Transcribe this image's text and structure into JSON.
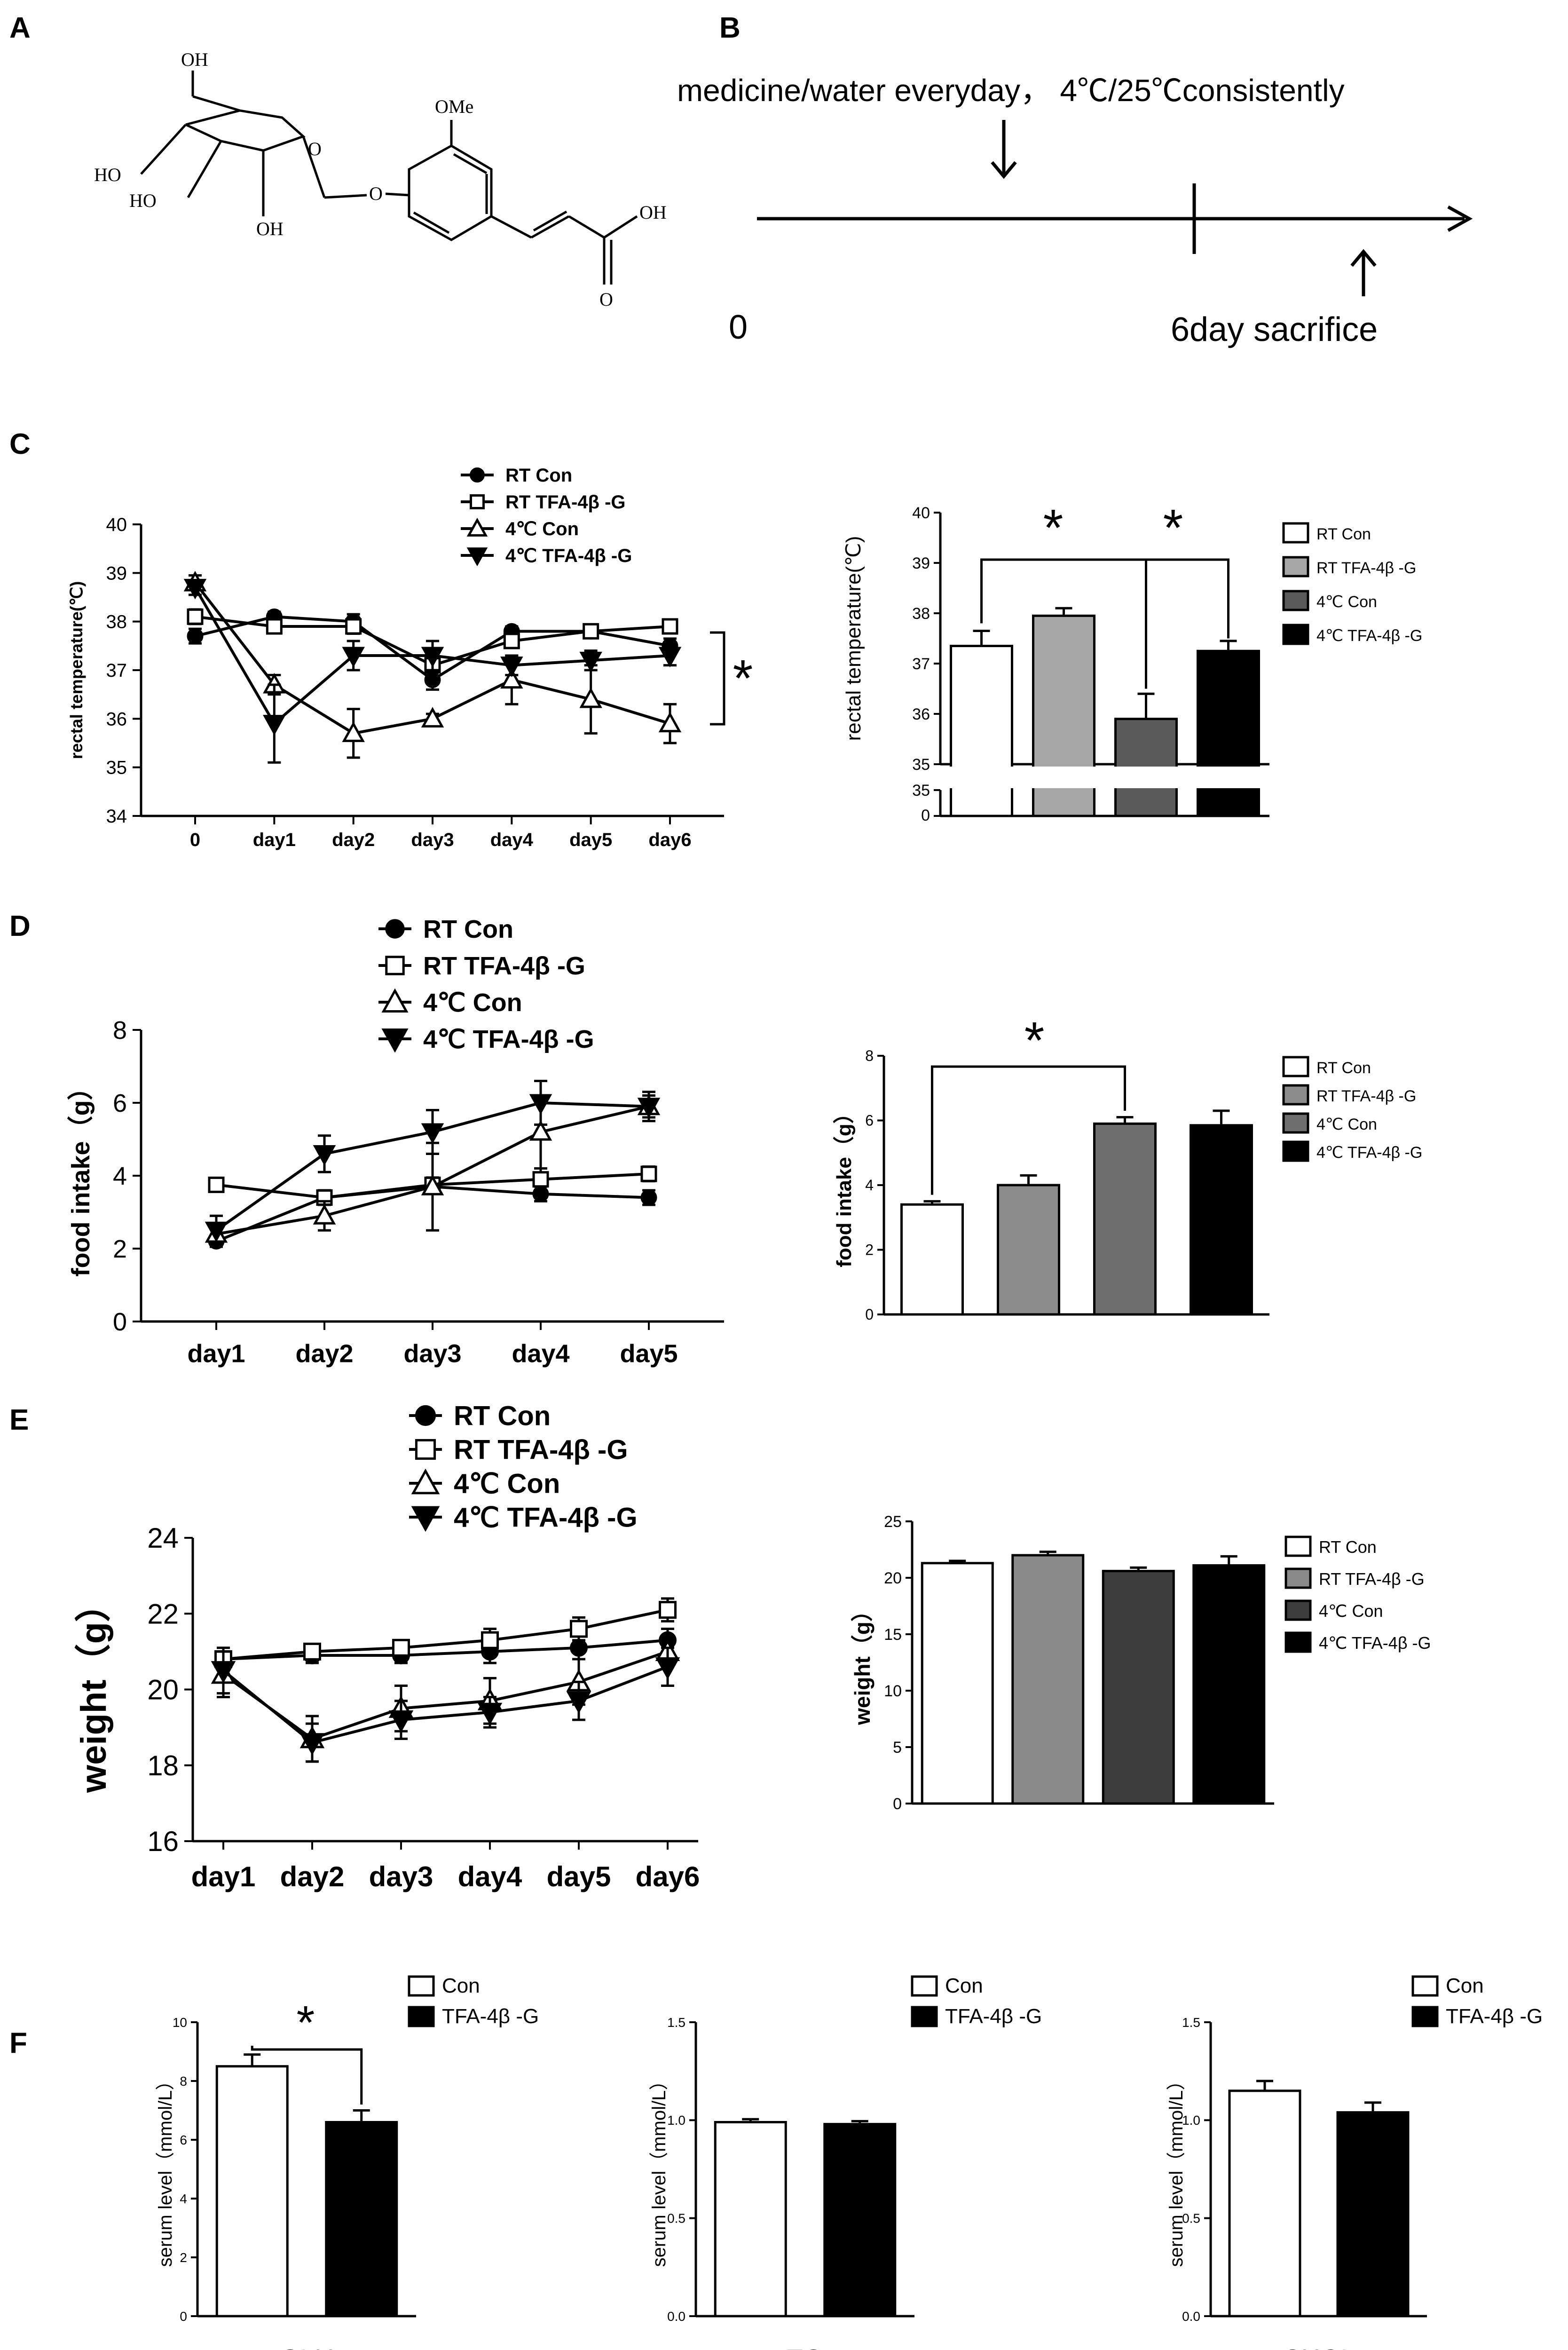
{
  "panels": {
    "A": {
      "letter": "A",
      "labels": {
        "oh1": "OH",
        "ho1": "HO",
        "ho2": "HO",
        "oh2": "OH",
        "o_ring": "O",
        "o_link": "O",
        "ome": "OMe",
        "cooh": "OH",
        "o_keto": "O"
      }
    },
    "B": {
      "letter": "B",
      "title": "medicine/water everyday， 4℃/25℃consistently",
      "start": "0",
      "end_label": "6day sacrifice"
    },
    "C": {
      "letter": "C"
    },
    "D": {
      "letter": "D"
    },
    "E": {
      "letter": "E"
    },
    "F": {
      "letter": "F"
    }
  },
  "chart_data": [
    {
      "id": "C_line",
      "type": "line",
      "ylabel": "rectal temperature(℃)",
      "categories": [
        "0",
        "day1",
        "day2",
        "day3",
        "day4",
        "day5",
        "day6"
      ],
      "ylim": [
        34,
        40
      ],
      "yticks": [
        34,
        35,
        36,
        37,
        38,
        39,
        40
      ],
      "legend": [
        {
          "name": "RT Con",
          "marker": "circle"
        },
        {
          "name": "RT TFA-4β -G",
          "marker": "square"
        },
        {
          "name": "4℃  Con",
          "marker": "triangle-up"
        },
        {
          "name": "4℃  TFA-4β -G",
          "marker": "triangle-down"
        }
      ],
      "series": [
        {
          "name": "RT Con",
          "marker": "circle",
          "values": [
            37.7,
            38.1,
            38.0,
            36.8,
            37.8,
            37.8,
            37.5
          ],
          "errors": [
            0.15,
            0.1,
            0.15,
            0.2,
            0.1,
            0.1,
            0.15
          ]
        },
        {
          "name": "RT TFA-4β -G",
          "marker": "square",
          "values": [
            38.1,
            37.9,
            37.9,
            37.1,
            37.6,
            37.8,
            37.9
          ],
          "errors": [
            0.15,
            0.1,
            0.15,
            0.15,
            0.1,
            0.1,
            0.1
          ]
        },
        {
          "name": "4℃  Con",
          "marker": "triangle-up",
          "values": [
            38.8,
            36.7,
            35.7,
            36.0,
            36.8,
            36.4,
            35.9
          ],
          "errors": [
            0.15,
            0.2,
            0.5,
            0.1,
            0.5,
            0.7,
            0.4
          ]
        },
        {
          "name": "4℃  TFA-4β -G",
          "marker": "triangle-down",
          "values": [
            38.7,
            35.9,
            37.3,
            37.3,
            37.1,
            37.2,
            37.3
          ],
          "errors": [
            0.15,
            0.8,
            0.3,
            0.3,
            0.2,
            0.2,
            0.2
          ]
        }
      ],
      "annotation": "*"
    },
    {
      "id": "C_bar",
      "type": "bar",
      "ylabel": "rectal temperature(℃)",
      "ylim": [
        35,
        40
      ],
      "yticks": [
        35,
        36,
        37,
        38,
        39,
        40
      ],
      "axis_break": true,
      "break_labels": [
        "35",
        "0"
      ],
      "categories": [
        "RT Con",
        "RT TFA-4β -G",
        "4℃ Con",
        "4℃ TFA-4β -G"
      ],
      "values": [
        37.35,
        37.95,
        35.9,
        37.25
      ],
      "errors": [
        0.3,
        0.15,
        0.5,
        0.2
      ],
      "colors": [
        "#ffffff",
        "#a6a6a6",
        "#5a5a5a",
        "#000000"
      ],
      "annotations": [
        "*",
        "*"
      ]
    },
    {
      "id": "D_line",
      "type": "line",
      "ylabel": "food intake（g）",
      "categories": [
        "day1",
        "day2",
        "day3",
        "day4",
        "day5"
      ],
      "ylim": [
        0,
        8
      ],
      "yticks": [
        0,
        2,
        4,
        6,
        8
      ],
      "legend": [
        {
          "name": "RT Con",
          "marker": "circle"
        },
        {
          "name": "RT TFA-4β -G",
          "marker": "square"
        },
        {
          "name": "4℃ Con",
          "marker": "triangle-up"
        },
        {
          "name": "4℃  TFA-4β -G",
          "marker": "triangle-down"
        }
      ],
      "series": [
        {
          "name": "RT Con",
          "marker": "circle",
          "values": [
            2.2,
            3.4,
            3.7,
            3.5,
            3.4
          ],
          "errors": [
            0.15,
            0.2,
            0.2,
            0.2,
            0.2
          ]
        },
        {
          "name": "RT TFA-4β -G",
          "marker": "square",
          "values": [
            3.75,
            3.4,
            3.75,
            3.9,
            4.05
          ],
          "errors": [
            0.1,
            0.2,
            0.2,
            0.3,
            0.2
          ]
        },
        {
          "name": "4℃ Con",
          "marker": "triangle-up",
          "values": [
            2.4,
            2.9,
            3.7,
            5.2,
            5.9
          ],
          "errors": [
            0.3,
            0.4,
            1.2,
            1.0,
            0.3
          ]
        },
        {
          "name": "4℃  TFA-4β -G",
          "marker": "triangle-down",
          "values": [
            2.5,
            4.6,
            5.2,
            6.0,
            5.9
          ],
          "errors": [
            0.4,
            0.5,
            0.6,
            0.6,
            0.4
          ]
        }
      ]
    },
    {
      "id": "D_bar",
      "type": "bar",
      "ylabel": "food intake（g）",
      "ylim": [
        0,
        8
      ],
      "yticks": [
        0,
        2,
        4,
        6,
        8
      ],
      "categories": [
        "RT Con",
        "RT TFA-4β -G",
        "4℃ Con",
        "4℃ TFA-4β -G"
      ],
      "values": [
        3.4,
        4.0,
        5.9,
        5.85
      ],
      "errors": [
        0.1,
        0.3,
        0.2,
        0.45
      ],
      "colors": [
        "#ffffff",
        "#8c8c8c",
        "#6e6e6e",
        "#000000"
      ],
      "annotations": [
        "*"
      ]
    },
    {
      "id": "E_line",
      "type": "line",
      "ylabel": "weight（g）",
      "categories": [
        "day1",
        "day2",
        "day3",
        "day4",
        "day5",
        "day6"
      ],
      "ylim": [
        16,
        24
      ],
      "yticks": [
        16,
        18,
        20,
        22,
        24
      ],
      "legend": [
        {
          "name": "RT Con",
          "marker": "circle"
        },
        {
          "name": "RT TFA-4β -G",
          "marker": "square"
        },
        {
          "name": "4℃ Con",
          "marker": "triangle-up"
        },
        {
          "name": "4℃  TFA-4β -G",
          "marker": "triangle-down"
        }
      ],
      "series": [
        {
          "name": "RT Con",
          "marker": "circle",
          "values": [
            20.8,
            20.9,
            20.9,
            21.0,
            21.1,
            21.3
          ],
          "errors": [
            0.2,
            0.2,
            0.2,
            0.3,
            0.3,
            0.3
          ]
        },
        {
          "name": "RT TFA-4β -G",
          "marker": "square",
          "values": [
            20.8,
            21.0,
            21.1,
            21.3,
            21.6,
            22.1
          ],
          "errors": [
            0.2,
            0.2,
            0.2,
            0.3,
            0.3,
            0.3
          ]
        },
        {
          "name": "4℃ Con",
          "marker": "triangle-up",
          "values": [
            20.4,
            18.7,
            19.5,
            19.7,
            20.2,
            21.0
          ],
          "errors": [
            0.6,
            0.6,
            0.6,
            0.6,
            0.6,
            0.4
          ]
        },
        {
          "name": "4℃  TFA-4β -G",
          "marker": "triangle-down",
          "values": [
            20.5,
            18.6,
            19.2,
            19.4,
            19.7,
            20.6
          ],
          "errors": [
            0.6,
            0.5,
            0.5,
            0.4,
            0.5,
            0.5
          ]
        }
      ]
    },
    {
      "id": "E_bar",
      "type": "bar",
      "ylabel": "weight（g）",
      "ylim": [
        0,
        25
      ],
      "yticks": [
        0,
        5,
        10,
        15,
        20,
        25
      ],
      "categories": [
        "RT Con",
        "RT TFA-4β -G",
        "4℃ Con",
        "4℃ TFA-4β -G"
      ],
      "values": [
        21.3,
        22.0,
        20.6,
        21.1
      ],
      "errors": [
        0.2,
        0.3,
        0.3,
        0.8
      ],
      "colors": [
        "#ffffff",
        "#8a8a8a",
        "#3c3c3c",
        "#000000"
      ]
    },
    {
      "id": "F_glu",
      "type": "bar",
      "ylabel": "serum level（mmol/L）",
      "xlabel": "GLU",
      "ylim": [
        0,
        10
      ],
      "yticks": [
        0,
        2,
        4,
        6,
        8,
        10
      ],
      "categories": [
        "Con",
        "TFA-4β -G"
      ],
      "values": [
        8.5,
        6.6
      ],
      "errors": [
        0.4,
        0.4
      ],
      "colors": [
        "#ffffff",
        "#000000"
      ],
      "annotations": [
        "*"
      ]
    },
    {
      "id": "F_tg",
      "type": "bar",
      "ylabel": "serum level（mmol/L）",
      "xlabel": "TG",
      "ylim": [
        0,
        1.5
      ],
      "yticks": [
        0.0,
        0.5,
        1.0,
        1.5
      ],
      "categories": [
        "Con",
        "TFA-4β -G"
      ],
      "values": [
        0.99,
        0.98
      ],
      "errors": [
        0.015,
        0.015
      ],
      "colors": [
        "#ffffff",
        "#000000"
      ]
    },
    {
      "id": "F_chol",
      "type": "bar",
      "ylabel": "serum level（mmol/L）",
      "xlabel": "CHOL",
      "ylim": [
        0,
        1.5
      ],
      "yticks": [
        0.0,
        0.5,
        1.0,
        1.5
      ],
      "categories": [
        "Con",
        "TFA-4β -G"
      ],
      "values": [
        1.15,
        1.04
      ],
      "errors": [
        0.05,
        0.05
      ],
      "colors": [
        "#ffffff",
        "#000000"
      ]
    }
  ]
}
